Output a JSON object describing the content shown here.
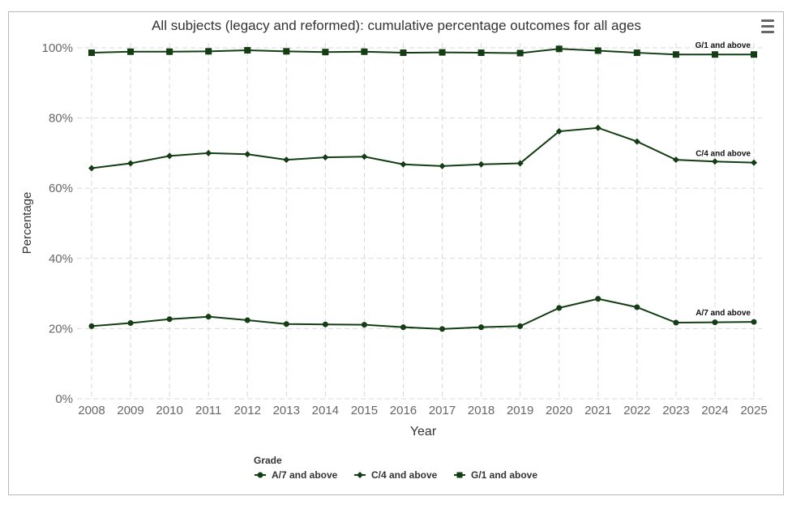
{
  "chart_data": {
    "type": "line",
    "title": "All subjects (legacy and reformed): cumulative percentage outcomes for all ages",
    "xlabel": "Year",
    "ylabel": "Percentage",
    "ylim": [
      0,
      100
    ],
    "yticks": [
      0,
      20,
      40,
      60,
      80,
      100
    ],
    "ytick_labels": [
      "0%",
      "20%",
      "40%",
      "60%",
      "80%",
      "100%"
    ],
    "grid": true,
    "legend_placement": "bottom-center",
    "legend_title": "Grade",
    "x": [
      "2008",
      "2009",
      "2010",
      "2011",
      "2012",
      "2013",
      "2014",
      "2015",
      "2016",
      "2017",
      "2018",
      "2019",
      "2020",
      "2021",
      "2022",
      "2023",
      "2024",
      "2025"
    ],
    "series": [
      {
        "name": "A/7 and above",
        "marker": "circle",
        "end_label": "A/7 and above",
        "values": [
          20.7,
          21.6,
          22.7,
          23.4,
          22.4,
          21.3,
          21.2,
          21.1,
          20.4,
          19.9,
          20.4,
          20.7,
          25.9,
          28.5,
          26.1,
          21.7,
          21.8,
          21.9
        ]
      },
      {
        "name": "C/4 and above",
        "marker": "diamond",
        "end_label": "C/4 and above",
        "values": [
          65.7,
          67.1,
          69.2,
          70.0,
          69.7,
          68.1,
          68.8,
          69.0,
          66.8,
          66.3,
          66.8,
          67.1,
          76.2,
          77.2,
          73.3,
          68.1,
          67.6,
          67.3
        ]
      },
      {
        "name": "G/1 and above",
        "marker": "square",
        "end_label": "G/1 and above",
        "values": [
          98.6,
          98.9,
          98.9,
          99.0,
          99.3,
          99.0,
          98.8,
          98.9,
          98.6,
          98.7,
          98.6,
          98.5,
          99.7,
          99.2,
          98.6,
          98.1,
          98.1,
          98.1
        ]
      }
    ]
  },
  "colors": {
    "series": "#133d13",
    "grid": "#d9d9d9",
    "axis_text": "#666666",
    "title": "#333333"
  },
  "menu_icon": "hamburger-menu-icon"
}
